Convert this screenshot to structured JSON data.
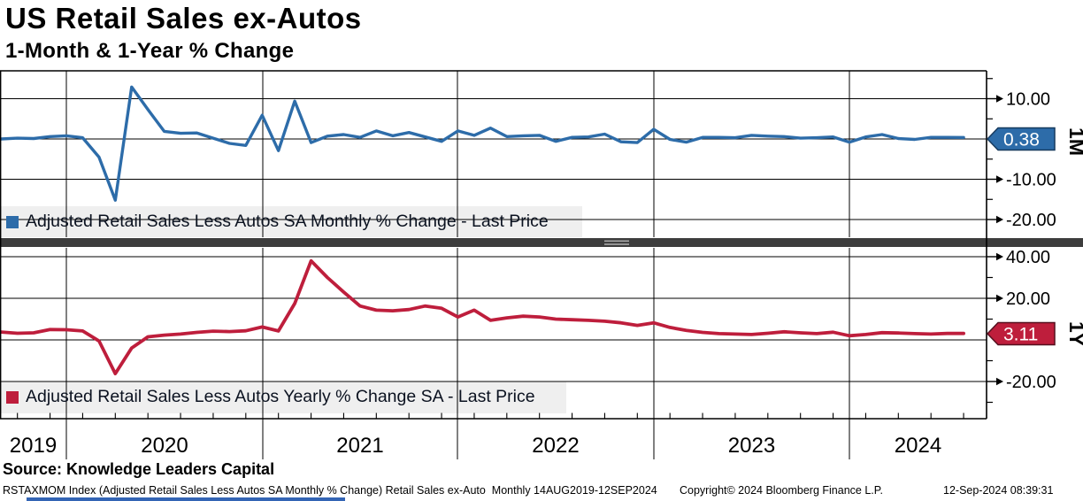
{
  "header": {
    "title": "US Retail Sales ex-Autos",
    "subtitle": "1-Month & 1-Year % Change"
  },
  "panels": {
    "top": {
      "legend": "Adjusted Retail Sales Less Autos SA Monthly % Change - Last Price",
      "axis_title": "1M",
      "last_price": "0.38",
      "line_color": "#2d6ca9",
      "tag_border_color": "#163a5f",
      "ticks": [
        {
          "label": "10.00",
          "value": 10
        },
        {
          "label": "-10.00",
          "value": -10
        },
        {
          "label": "-20.00",
          "value": -20
        }
      ],
      "minor_tick_values": [
        15,
        5,
        -5,
        -15
      ]
    },
    "bottom": {
      "legend": "Adjusted Retail Sales Less Autos Yearly % Change SA - Last Price",
      "axis_title": "1Y",
      "last_price": "3.11",
      "line_color": "#be1e3c",
      "tag_border_color": "#55101f",
      "ticks": [
        {
          "label": "40.00",
          "value": 40
        },
        {
          "label": "20.00",
          "value": 20
        },
        {
          "label": "-20.00",
          "value": -20
        }
      ],
      "minor_tick_values": [
        30,
        10,
        -10,
        -30
      ]
    }
  },
  "x_axis": {
    "year_labels": [
      "2019",
      "2020",
      "2021",
      "2022",
      "2023",
      "2024"
    ]
  },
  "footer": {
    "source": "Source: Knowledge Leaders Capital",
    "description": "RSTAXMOM Index (Adjusted Retail Sales Less Autos SA Monthly % Change) Retail Sales ex-Auto  Monthly 14AUG2019-12SEP2024",
    "copyright": "Copyright© 2024 Bloomberg Finance L.P.",
    "timestamp": "12-Sep-2024 08:39:31"
  },
  "chart_data": {
    "type": "line",
    "frequency": "monthly",
    "x_start": "2019-09",
    "x_end": "2024-08",
    "grid": true,
    "legend_position": "inside-bottom-left",
    "x_tick_years": [
      "2019",
      "2020",
      "2021",
      "2022",
      "2023",
      "2024"
    ],
    "series": [
      {
        "name": "Adjusted Retail Sales Less Autos SA Monthly % Change",
        "panel": "1M",
        "color": "#2d6ca9",
        "last_price": 0.38,
        "ylim": [
          -24.4,
          16.9
        ],
        "yticks": [
          10,
          -10,
          -20
        ],
        "values": [
          0.0,
          0.2,
          0.1,
          0.6,
          0.8,
          0.3,
          -4.5,
          -15.2,
          12.9,
          7.3,
          1.9,
          1.4,
          1.5,
          0.2,
          -1.1,
          -1.6,
          5.9,
          -2.9,
          9.4,
          -0.9,
          0.7,
          1.1,
          0.4,
          2.0,
          0.8,
          1.6,
          0.5,
          -0.6,
          2.0,
          0.9,
          2.7,
          0.6,
          0.8,
          0.9,
          -0.6,
          0.4,
          0.5,
          1.2,
          -0.7,
          -0.9,
          2.4,
          -0.1,
          -0.8,
          0.4,
          0.4,
          0.3,
          0.9,
          0.7,
          0.6,
          0.2,
          0.3,
          0.5,
          -0.8,
          0.5,
          1.1,
          0.1,
          -0.1,
          0.4,
          0.4,
          0.38
        ]
      },
      {
        "name": "Adjusted Retail Sales Less Autos Yearly % Change SA",
        "panel": "1Y",
        "color": "#be1e3c",
        "last_price": 3.11,
        "ylim": [
          -37.9,
          44.3
        ],
        "yticks": [
          40,
          20,
          -20
        ],
        "values": [
          3.8,
          3.2,
          3.4,
          5.0,
          4.9,
          4.3,
          -0.5,
          -16.2,
          -3.9,
          1.5,
          2.3,
          2.8,
          3.6,
          4.2,
          4.0,
          4.4,
          6.2,
          4.3,
          17.5,
          38.0,
          30.0,
          23.0,
          16.3,
          14.3,
          14.0,
          14.6,
          16.3,
          15.2,
          11.0,
          14.3,
          9.4,
          10.6,
          11.4,
          11.0,
          10.0,
          9.7,
          9.4,
          9.0,
          8.2,
          7.0,
          8.2,
          6.0,
          4.6,
          3.6,
          3.0,
          2.8,
          2.6,
          3.2,
          3.9,
          3.4,
          3.0,
          3.7,
          2.0,
          2.6,
          3.5,
          3.3,
          3.0,
          2.8,
          3.1,
          3.11
        ]
      }
    ]
  }
}
